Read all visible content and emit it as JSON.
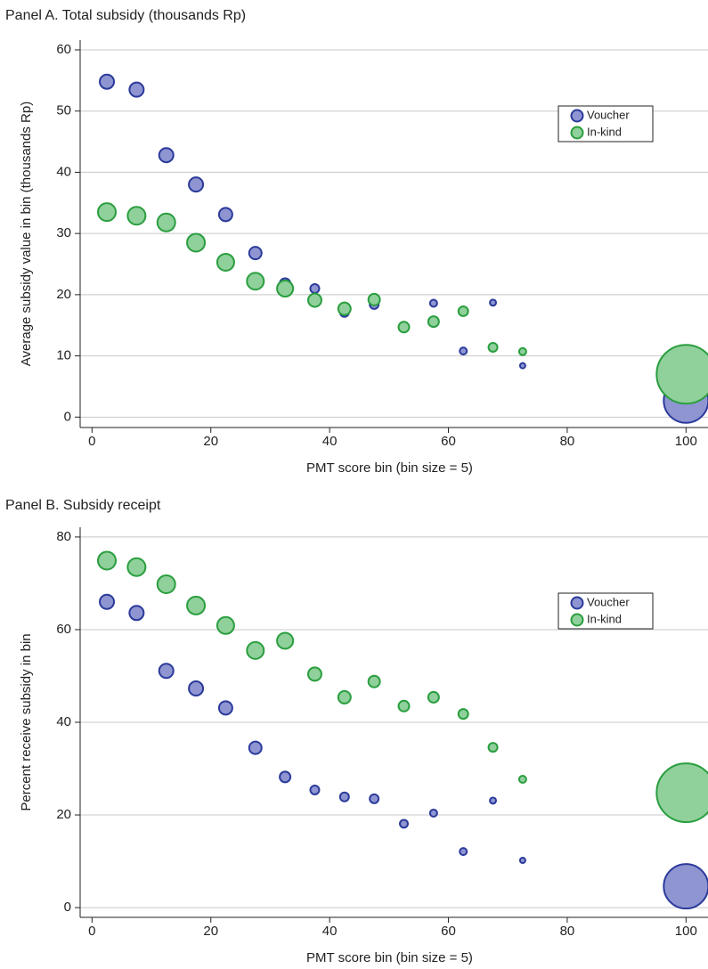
{
  "chart_data": [
    {
      "type": "scatter",
      "title": "Panel A. Total subsidy (thousands Rp)",
      "x_label": "PMT score bin (bin size = 5)",
      "y_label": "Average subsidy value in bin (thousands Rp)",
      "x": [
        2.5,
        7.5,
        12.5,
        17.5,
        22.5,
        27.5,
        32.5,
        37.5,
        42.5,
        47.5,
        52.5,
        57.5,
        62.5,
        67.5,
        72.5,
        100
      ],
      "series": [
        {
          "name": "Voucher",
          "color": "#8e95d1",
          "edge_color": "#2b3a9b",
          "values": [
            54.8,
            53.5,
            42.8,
            38.0,
            33.1,
            26.8,
            21.8,
            21.0,
            17.1,
            18.4,
            14.5,
            18.6,
            10.8,
            18.7,
            8.4,
            2.7
          ],
          "sizes": [
            64,
            64,
            64,
            64,
            56,
            49,
            36,
            25,
            25,
            25,
            20,
            16,
            16,
            12,
            9,
            625
          ]
        },
        {
          "name": "In-kind",
          "color": "#8fd09b",
          "edge_color": "#2a9e3f",
          "values": [
            33.5,
            32.9,
            31.8,
            28.5,
            25.3,
            22.2,
            21.0,
            19.1,
            17.7,
            19.2,
            14.7,
            15.6,
            17.3,
            11.4,
            10.7,
            7.0
          ],
          "sizes": [
            100,
            100,
            100,
            100,
            90,
            90,
            81,
            56,
            49,
            42,
            36,
            36,
            30,
            25,
            16,
            1089
          ]
        }
      ],
      "xlim": [
        -2,
        103.7
      ],
      "xticks": [
        0,
        20,
        40,
        60,
        80,
        100
      ],
      "ylim": [
        -1.7,
        61.6
      ],
      "yticks": [
        0,
        10,
        20,
        30,
        40,
        50,
        60
      ],
      "grid": true,
      "legend": "upper right"
    },
    {
      "type": "scatter",
      "title": "Panel B. Subsidy receipt",
      "x_label": "PMT score bin (bin size = 5)",
      "y_label": "Percent receive subsidy in bin",
      "x": [
        2.5,
        7.5,
        12.5,
        17.5,
        22.5,
        27.5,
        32.5,
        37.5,
        42.5,
        47.5,
        52.5,
        57.5,
        62.5,
        67.5,
        72.5,
        100
      ],
      "series": [
        {
          "name": "Voucher",
          "color": "#8e95d1",
          "edge_color": "#2b3a9b",
          "values": [
            66.0,
            63.6,
            51.1,
            47.3,
            43.1,
            34.5,
            28.2,
            25.4,
            23.9,
            23.5,
            18.1,
            20.4,
            12.1,
            23.1,
            10.2,
            4.6
          ],
          "sizes": [
            64,
            64,
            64,
            64,
            56,
            49,
            36,
            25,
            25,
            25,
            20,
            16,
            16,
            12,
            9,
            625
          ]
        },
        {
          "name": "In-kind",
          "color": "#8fd09b",
          "edge_color": "#2a9e3f",
          "values": [
            74.9,
            73.5,
            69.8,
            65.2,
            60.9,
            55.5,
            57.6,
            50.4,
            45.4,
            48.8,
            43.5,
            45.4,
            41.8,
            34.6,
            27.7,
            24.8
          ],
          "sizes": [
            100,
            100,
            100,
            100,
            90,
            90,
            81,
            56,
            49,
            42,
            36,
            36,
            30,
            25,
            16,
            1089
          ]
        }
      ],
      "xlim": [
        -2,
        103.7
      ],
      "xticks": [
        0,
        20,
        40,
        60,
        80,
        100
      ],
      "ylim": [
        -2.1,
        82.1
      ],
      "yticks": [
        0,
        20,
        40,
        60,
        80
      ],
      "grid": true,
      "legend": "upper right"
    }
  ]
}
